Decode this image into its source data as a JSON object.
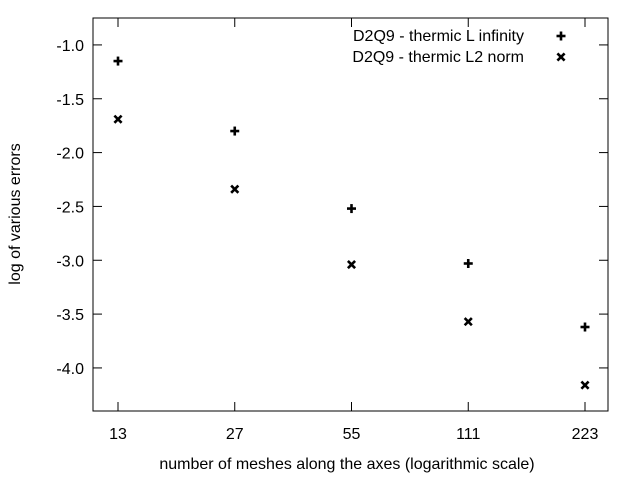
{
  "chart_data": {
    "type": "scatter",
    "xlabel": "number of meshes along the axes (logarithmic scale)",
    "ylabel": "log of various errors",
    "x_scale": "log",
    "x_ticks": [
      "13",
      "27",
      "55",
      "111",
      "223"
    ],
    "y_ticks": [
      "-1.0",
      "-1.5",
      "-2.0",
      "-2.5",
      "-3.0",
      "-3.5",
      "-4.0"
    ],
    "ylim": [
      -4.4,
      -0.75
    ],
    "grid": false,
    "legend_position": "top-right",
    "series": [
      {
        "name": "D2Q9 - thermic L infinity",
        "marker": "plus",
        "points": [
          {
            "x": 13,
            "y": -1.15
          },
          {
            "x": 27,
            "y": -1.8
          },
          {
            "x": 55,
            "y": -2.52
          },
          {
            "x": 111,
            "y": -3.03
          },
          {
            "x": 223,
            "y": -3.62
          }
        ]
      },
      {
        "name": "D2Q9 - thermic L2 norm",
        "marker": "cross",
        "points": [
          {
            "x": 13,
            "y": -1.69
          },
          {
            "x": 27,
            "y": -2.34
          },
          {
            "x": 55,
            "y": -3.04
          },
          {
            "x": 111,
            "y": -3.57
          },
          {
            "x": 223,
            "y": -4.16
          }
        ]
      }
    ]
  }
}
